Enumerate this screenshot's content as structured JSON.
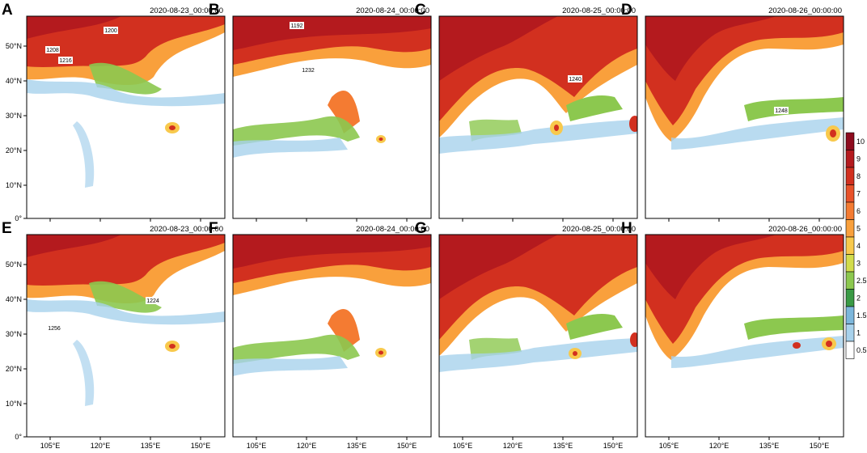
{
  "figure": {
    "panels": [
      {
        "letter": "A",
        "date": "2020-08-23_00:00:00"
      },
      {
        "letter": "B",
        "date": "2020-08-24_00:00:00"
      },
      {
        "letter": "C",
        "date": "2020-08-25_00:00:00"
      },
      {
        "letter": "D",
        "date": "2020-08-26_00:00:00"
      },
      {
        "letter": "E",
        "date": "2020-08-23_00:00:00"
      },
      {
        "letter": "F",
        "date": "2020-08-24_00:00:00"
      },
      {
        "letter": "G",
        "date": "2020-08-25_00:00:00"
      },
      {
        "letter": "H",
        "date": "2020-08-26_00:00:00"
      }
    ],
    "lat_labels": [
      "50°N",
      "40°N",
      "30°N",
      "20°N",
      "10°N",
      "0°"
    ],
    "lon_labels": [
      "105°E",
      "120°E",
      "135°E",
      "150°E"
    ],
    "colorbar": {
      "labels": [
        "10",
        "9",
        "8",
        "7",
        "6",
        "5",
        "4",
        "3",
        "2.5",
        "2",
        "1.5",
        "1",
        "0.5"
      ],
      "colors": [
        "#8e0b1e",
        "#b41a1e",
        "#d2301f",
        "#e8522a",
        "#f47b32",
        "#f9a03c",
        "#f8c94c",
        "#d2dc4c",
        "#8cc84f",
        "#3a9a45",
        "#7cb7dc",
        "#a8d2ec",
        "#ffffff"
      ]
    },
    "contour_labels": [
      "1192",
      "1200",
      "1208",
      "1216",
      "1224",
      "1232",
      "1240",
      "1248",
      "1256"
    ]
  }
}
